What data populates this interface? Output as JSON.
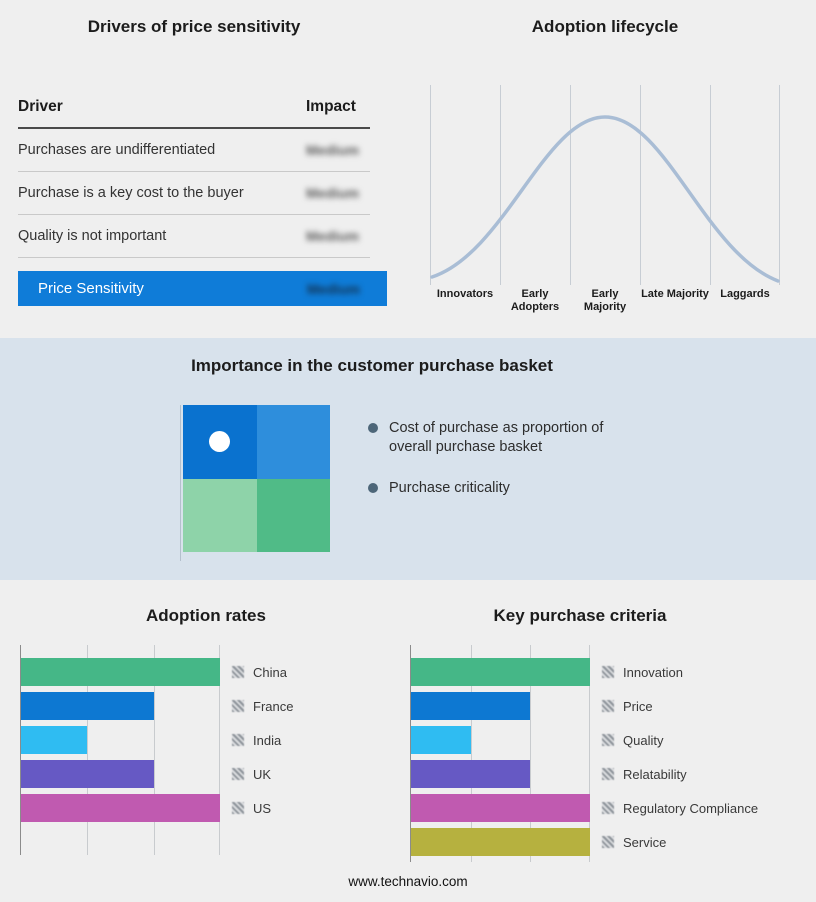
{
  "page": {
    "footer": "www.technavio.com"
  },
  "price_sensitivity": {
    "title": "Drivers of price sensitivity",
    "columns": {
      "driver": "Driver",
      "impact": "Impact"
    },
    "rows": [
      {
        "driver": "Purchases are undifferentiated",
        "impact": "Medium"
      },
      {
        "driver": "Purchase is a key cost to the buyer",
        "impact": "Medium"
      },
      {
        "driver": "Quality is not important",
        "impact": "Medium"
      }
    ],
    "summary_row": {
      "label": "Price Sensitivity",
      "impact": "Medium"
    },
    "accent_color": "#0f7cd8",
    "impact_values_obscured": "blurred"
  },
  "adoption_lifecycle": {
    "title": "Adoption lifecycle",
    "stages": [
      "Innovators",
      "Early Adopters",
      "Early Majority",
      "Late Majority",
      "Laggards"
    ],
    "curve": "bell",
    "curve_color": "#a9bdd5"
  },
  "purchase_basket": {
    "title": "Importance in the customer purchase basket",
    "bullets": [
      "Cost of purchase as proportion of overall purchase basket",
      "Purchase criticality"
    ],
    "bullet_icon": "circle",
    "matrix_colors": [
      "#0a72cf",
      "#2e8edc",
      "#8ed3a9",
      "#50bb87"
    ],
    "matrix_marker": "white-circle-top-left"
  },
  "chart_data": [
    {
      "type": "bar",
      "title": "Adoption rates",
      "orientation": "horizontal",
      "categories": [
        "China",
        "France",
        "India",
        "UK",
        "US"
      ],
      "values": [
        3,
        2,
        1,
        2,
        3
      ],
      "colors": [
        "#45b787",
        "#0d78d2",
        "#2fbcf2",
        "#6659c4",
        "#c05ab0"
      ],
      "xlim": [
        0,
        3
      ],
      "grid": true,
      "tick_labels": "none",
      "legend_position": "right",
      "legend_icon": "hatched-square"
    },
    {
      "type": "bar",
      "title": "Key purchase criteria",
      "orientation": "horizontal",
      "categories": [
        "Innovation",
        "Price",
        "Quality",
        "Relatability",
        "Regulatory Compliance",
        "Service"
      ],
      "values": [
        3,
        2,
        1,
        2,
        3,
        3
      ],
      "colors": [
        "#45b787",
        "#0d78d2",
        "#2fbcf2",
        "#6659c4",
        "#c05ab0",
        "#b6b13f"
      ],
      "xlim": [
        0,
        3
      ],
      "grid": true,
      "tick_labels": "none",
      "legend_position": "right",
      "legend_icon": "hatched-square"
    }
  ]
}
